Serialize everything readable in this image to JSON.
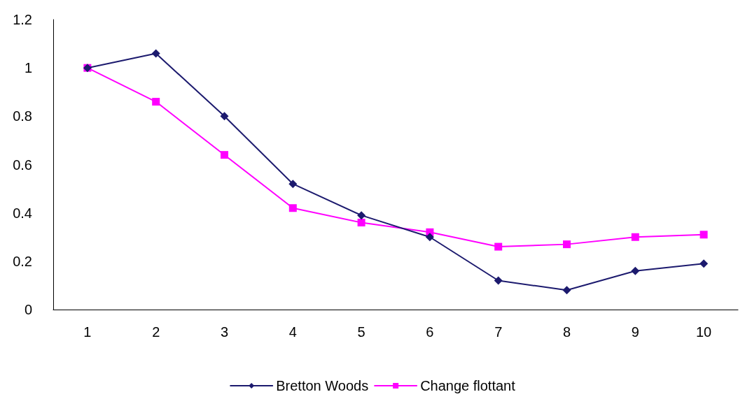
{
  "chart_data": {
    "type": "line",
    "categories": [
      "1",
      "2",
      "3",
      "4",
      "5",
      "6",
      "7",
      "8",
      "9",
      "10"
    ],
    "series": [
      {
        "name": "Bretton Woods",
        "color": "#1c1a6e",
        "marker": "diamond",
        "values": [
          1.0,
          1.06,
          0.8,
          0.52,
          0.39,
          0.3,
          0.12,
          0.08,
          0.16,
          0.19
        ]
      },
      {
        "name": "Change flottant",
        "color": "#ff00ff",
        "marker": "square",
        "values": [
          1.0,
          0.86,
          0.64,
          0.42,
          0.36,
          0.32,
          0.26,
          0.27,
          0.3,
          0.31
        ]
      }
    ],
    "ylim": [
      0,
      1.2
    ],
    "yticks": [
      0,
      0.2,
      0.4,
      0.6,
      0.8,
      1,
      1.2
    ],
    "grid": false,
    "legend": "bottom",
    "line_style": "solid"
  }
}
